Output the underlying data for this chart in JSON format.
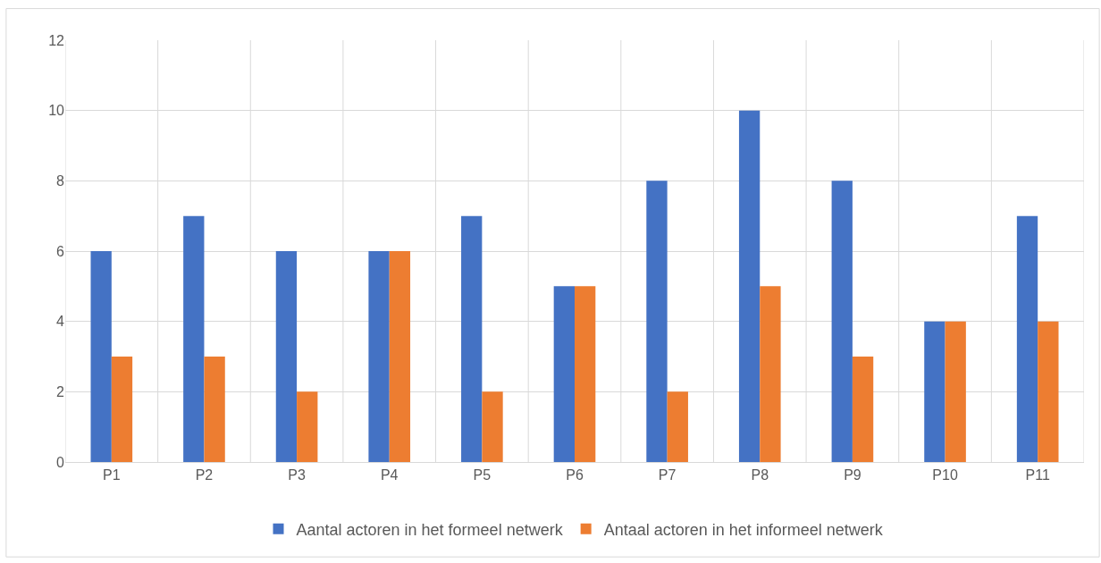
{
  "chart_data": {
    "type": "bar",
    "categories": [
      "P1",
      "P2",
      "P3",
      "P4",
      "P5",
      "P6",
      "P7",
      "P8",
      "P9",
      "P10",
      "P11"
    ],
    "series": [
      {
        "name": "Aantal actoren in het formeel netwerk",
        "color": "#4472c4",
        "values": [
          6,
          7,
          6,
          6,
          7,
          5,
          8,
          10,
          8,
          4,
          7
        ]
      },
      {
        "name": "Antaal actoren in het informeel netwerk",
        "color": "#ed7d31",
        "values": [
          3,
          3,
          2,
          6,
          2,
          5,
          2,
          5,
          3,
          4,
          4
        ]
      }
    ],
    "ylim": [
      0,
      12
    ],
    "yticks": [
      0,
      2,
      4,
      6,
      8,
      10,
      12
    ],
    "grid": true,
    "legend": "bottom"
  }
}
